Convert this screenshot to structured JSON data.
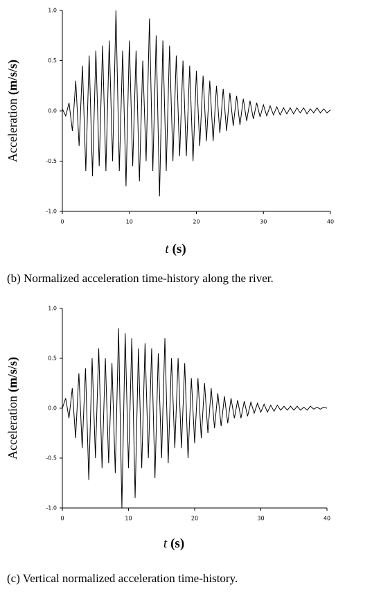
{
  "chart_data": [
    {
      "type": "line",
      "ylabel": "Acceleration",
      "yunit": "(m/s/s)",
      "xlabel": "t",
      "xunit": "(s)",
      "caption": "(b) Normalized acceleration time-history along the river.",
      "xlim": [
        0,
        40
      ],
      "xticks": [
        0,
        10,
        20,
        30,
        40
      ],
      "ylim": [
        -1,
        1
      ],
      "yticks": [
        {
          "value": -1,
          "label": "-1.0"
        },
        {
          "value": -0.5,
          "label": "-0.5"
        },
        {
          "value": 0,
          "label": "0.0"
        },
        {
          "value": 0.5,
          "label": "0.5"
        },
        {
          "value": 1,
          "label": "1.0"
        }
      ],
      "x": [
        0,
        0.5,
        1,
        1.5,
        2,
        2.5,
        3,
        3.5,
        4,
        4.5,
        5,
        5.5,
        6,
        6.5,
        7,
        7.5,
        8,
        8.5,
        9,
        9.5,
        10,
        10.5,
        11,
        11.5,
        12,
        12.5,
        13,
        13.5,
        14,
        14.5,
        15,
        15.5,
        16,
        16.5,
        17,
        17.5,
        18,
        18.5,
        19,
        19.5,
        20,
        20.5,
        21,
        21.5,
        22,
        22.5,
        23,
        23.5,
        24,
        24.5,
        25,
        25.5,
        26,
        26.5,
        27,
        27.5,
        28,
        28.5,
        29,
        29.5,
        30,
        30.5,
        31,
        31.5,
        32,
        32.5,
        33,
        33.5,
        34,
        34.5,
        35,
        35.5,
        36,
        36.5,
        37,
        37.5,
        38,
        38.5,
        39,
        39.5,
        40
      ],
      "series": [
        {
          "color": "#000000",
          "values": [
            0.02,
            -0.05,
            0.08,
            -0.2,
            0.3,
            -0.35,
            0.45,
            -0.6,
            0.55,
            -0.65,
            0.6,
            -0.55,
            0.65,
            -0.6,
            0.7,
            -0.5,
            1.0,
            -0.6,
            0.6,
            -0.75,
            0.7,
            -0.55,
            0.6,
            -0.7,
            0.5,
            -0.5,
            0.92,
            -0.6,
            0.75,
            -0.85,
            0.7,
            -0.6,
            0.65,
            -0.5,
            0.55,
            -0.45,
            0.5,
            -0.45,
            0.45,
            -0.5,
            0.4,
            -0.35,
            0.35,
            -0.3,
            0.3,
            -0.3,
            0.25,
            -0.22,
            0.22,
            -0.2,
            0.18,
            -0.15,
            0.15,
            -0.14,
            0.12,
            -0.1,
            0.1,
            -0.08,
            0.08,
            -0.06,
            0.06,
            -0.05,
            0.05,
            -0.04,
            0.04,
            -0.04,
            0.03,
            -0.03,
            0.03,
            -0.03,
            0.03,
            -0.02,
            0.03,
            -0.03,
            0.02,
            -0.02,
            0.03,
            -0.02,
            0.02,
            -0.02,
            0.01
          ]
        }
      ]
    },
    {
      "type": "line",
      "ylabel": "Acceleration",
      "yunit": "(m/s/s)",
      "xlabel": "t",
      "xunit": "(s)",
      "caption": "(c) Vertical normalized acceleration time-history.",
      "xlim": [
        0,
        40
      ],
      "xticks": [
        0,
        10,
        20,
        30,
        40
      ],
      "ylim": [
        -1,
        1
      ],
      "yticks": [
        {
          "value": -1,
          "label": "-1.0"
        },
        {
          "value": -0.5,
          "label": "-0.5"
        },
        {
          "value": 0,
          "label": "0.0"
        },
        {
          "value": 0.5,
          "label": "0.5"
        },
        {
          "value": 1,
          "label": "1.0"
        }
      ],
      "x": [
        0,
        0.5,
        1,
        1.5,
        2,
        2.5,
        3,
        3.5,
        4,
        4.5,
        5,
        5.5,
        6,
        6.5,
        7,
        7.5,
        8,
        8.5,
        9,
        9.5,
        10,
        10.5,
        11,
        11.5,
        12,
        12.5,
        13,
        13.5,
        14,
        14.5,
        15,
        15.5,
        16,
        16.5,
        17,
        17.5,
        18,
        18.5,
        19,
        19.5,
        20,
        20.5,
        21,
        21.5,
        22,
        22.5,
        23,
        23.5,
        24,
        24.5,
        25,
        25.5,
        26,
        26.5,
        27,
        27.5,
        28,
        28.5,
        29,
        29.5,
        30,
        30.5,
        31,
        31.5,
        32,
        32.5,
        33,
        33.5,
        34,
        34.5,
        35,
        35.5,
        36,
        36.5,
        37,
        37.5,
        38,
        38.5,
        39,
        39.5,
        40
      ],
      "series": [
        {
          "color": "#000000",
          "values": [
            0.0,
            0.1,
            -0.1,
            0.2,
            -0.3,
            0.35,
            -0.4,
            0.4,
            -0.72,
            0.5,
            -0.5,
            0.6,
            -0.6,
            0.5,
            -0.55,
            0.45,
            -0.65,
            0.8,
            -1.0,
            0.75,
            -0.6,
            0.7,
            -0.9,
            0.6,
            -0.6,
            0.65,
            -0.5,
            0.6,
            -0.7,
            0.55,
            -0.5,
            0.7,
            -0.55,
            0.5,
            -0.4,
            0.5,
            -0.4,
            0.45,
            -0.5,
            0.3,
            -0.35,
            0.3,
            -0.3,
            0.25,
            -0.25,
            0.2,
            -0.2,
            0.15,
            -0.18,
            0.12,
            -0.15,
            0.1,
            -0.1,
            0.08,
            -0.1,
            0.07,
            -0.08,
            0.06,
            -0.05,
            0.05,
            -0.04,
            0.04,
            -0.04,
            0.03,
            -0.03,
            0.03,
            -0.02,
            0.02,
            -0.02,
            0.02,
            -0.02,
            0.02,
            -0.02,
            0.01,
            -0.02,
            0.02,
            -0.01,
            0.01,
            -0.01,
            0.01,
            0.0
          ]
        }
      ]
    }
  ]
}
